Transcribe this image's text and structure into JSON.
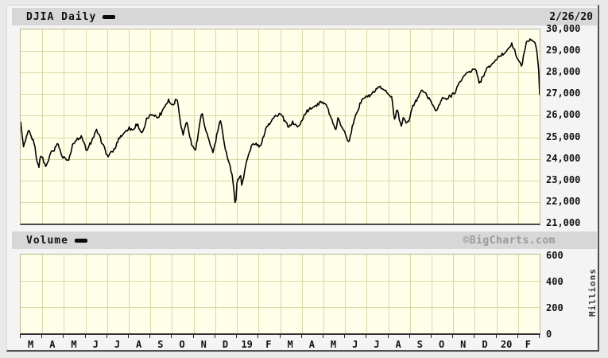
{
  "header": {
    "title": "DJIA Daily",
    "date": "2/26/20"
  },
  "volume_header": {
    "label": "Volume",
    "copyright": "©BigCharts.com"
  },
  "price_axis": {
    "labels": [
      "30,000",
      "29,000",
      "28,000",
      "27,000",
      "26,000",
      "25,000",
      "24,000",
      "23,000",
      "22,000",
      "21,000"
    ],
    "max": 30000,
    "min": 21000
  },
  "volume_axis": {
    "labels": [
      "600",
      "400",
      "200",
      "0"
    ],
    "unit_label": "Millions",
    "max": 600,
    "min": 0
  },
  "x_axis": {
    "labels": [
      "M",
      "A",
      "M",
      "J",
      "J",
      "A",
      "S",
      "O",
      "N",
      "D",
      "19",
      "F",
      "M",
      "A",
      "M",
      "J",
      "J",
      "A",
      "S",
      "O",
      "N",
      "D",
      "20",
      "F"
    ]
  },
  "colors": {
    "plot_bg": "#fffee8",
    "grid": "#d9d9a8",
    "line": "#000000",
    "bar_bg": "#d7d7d7",
    "copyright": "#9a9a9a"
  },
  "chart_data": {
    "type": "line",
    "title": "DJIA Daily",
    "as_of": "2/26/20",
    "xlabel_months": [
      "M",
      "A",
      "M",
      "J",
      "J",
      "A",
      "S",
      "O",
      "N",
      "D",
      "19",
      "F",
      "M",
      "A",
      "M",
      "J",
      "J",
      "A",
      "S",
      "O",
      "N",
      "D",
      "20",
      "F"
    ],
    "x_unit": "months since 2018-02-26",
    "x_range": [
      0,
      24
    ],
    "y_range": [
      21000,
      30000
    ],
    "grid": true,
    "legend_position": "top-left",
    "series": [
      {
        "name": "DJIA",
        "points": [
          [
            0,
            25709
          ],
          [
            0.13,
            24538
          ],
          [
            0.37,
            25336
          ],
          [
            0.5,
            25007
          ],
          [
            0.62,
            24750
          ],
          [
            0.83,
            23533
          ],
          [
            0.93,
            24203
          ],
          [
            1.17,
            23644
          ],
          [
            1.43,
            24408
          ],
          [
            1.53,
            24360
          ],
          [
            1.7,
            24748
          ],
          [
            1.93,
            24084
          ],
          [
            2.2,
            23930
          ],
          [
            2.43,
            24740
          ],
          [
            2.8,
            25013
          ],
          [
            3.07,
            24361
          ],
          [
            3.5,
            25322
          ],
          [
            3.57,
            25201
          ],
          [
            4.03,
            24117
          ],
          [
            4.3,
            24357
          ],
          [
            4.53,
            24924
          ],
          [
            4.97,
            25414
          ],
          [
            5.2,
            25327
          ],
          [
            5.37,
            25628
          ],
          [
            5.63,
            25162
          ],
          [
            5.83,
            25822
          ],
          [
            6.07,
            26064
          ],
          [
            6.37,
            25917
          ],
          [
            6.83,
            26743
          ],
          [
            7.0,
            26458
          ],
          [
            7.23,
            26828
          ],
          [
            7.5,
            25053
          ],
          [
            7.67,
            25798
          ],
          [
            7.93,
            24583
          ],
          [
            8.1,
            24443
          ],
          [
            8.37,
            26180
          ],
          [
            8.53,
            25387
          ],
          [
            8.9,
            24286
          ],
          [
            9.23,
            25826
          ],
          [
            9.47,
            24423
          ],
          [
            9.77,
            23324
          ],
          [
            9.87,
            22445
          ],
          [
            9.93,
            21792
          ],
          [
            10.0,
            22878
          ],
          [
            10.17,
            23327
          ],
          [
            10.23,
            22686
          ],
          [
            10.43,
            23879
          ],
          [
            10.73,
            24706
          ],
          [
            11.1,
            24580
          ],
          [
            11.33,
            25411
          ],
          [
            11.67,
            25883
          ],
          [
            12.0,
            26091
          ],
          [
            12.4,
            25450
          ],
          [
            12.57,
            25703
          ],
          [
            12.87,
            25502
          ],
          [
            13.2,
            26179
          ],
          [
            13.9,
            26656
          ],
          [
            14.17,
            26430
          ],
          [
            14.57,
            25325
          ],
          [
            14.67,
            25863
          ],
          [
            15.17,
            24815
          ],
          [
            15.5,
            26049
          ],
          [
            15.8,
            26753
          ],
          [
            16.23,
            26966
          ],
          [
            16.63,
            27359
          ],
          [
            17.17,
            26864
          ],
          [
            17.3,
            25718
          ],
          [
            17.4,
            26378
          ],
          [
            17.6,
            25479
          ],
          [
            17.67,
            25886
          ],
          [
            17.9,
            25629
          ],
          [
            18.13,
            26403
          ],
          [
            18.53,
            27182
          ],
          [
            18.8,
            26935
          ],
          [
            19.23,
            26201
          ],
          [
            19.5,
            26817
          ],
          [
            19.73,
            26770
          ],
          [
            20.07,
            27090
          ],
          [
            20.4,
            27681
          ],
          [
            20.63,
            28005
          ],
          [
            21.03,
            28164
          ],
          [
            21.23,
            27502
          ],
          [
            21.53,
            28132
          ],
          [
            22.03,
            28645
          ],
          [
            22.43,
            28957
          ],
          [
            22.7,
            29348
          ],
          [
            23.03,
            28536
          ],
          [
            23.17,
            28256
          ],
          [
            23.37,
            29380
          ],
          [
            23.57,
            29551
          ],
          [
            23.8,
            29348
          ],
          [
            23.87,
            28992
          ],
          [
            23.97,
            27961
          ],
          [
            23.99,
            27081
          ],
          [
            24.0,
            26958
          ]
        ]
      }
    ],
    "volume_panel": {
      "name": "Volume",
      "unit": "Millions",
      "y_range": [
        0,
        600
      ],
      "points": []
    }
  }
}
